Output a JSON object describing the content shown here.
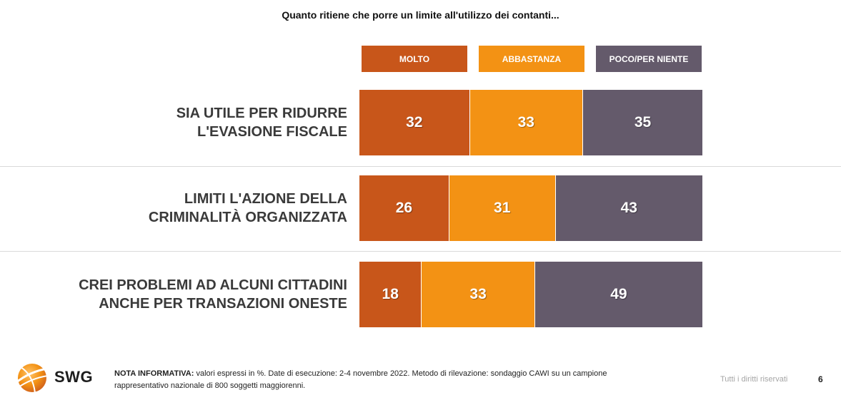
{
  "chart_data": {
    "type": "bar",
    "stacked": "100%",
    "orientation": "horizontal",
    "title": "Quanto ritiene che porre un limite all'utilizzo dei contanti...",
    "categories": [
      [
        "SIA UTILE PER RIDURRE",
        "L'EVASIONE FISCALE"
      ],
      [
        "LIMITI L'AZIONE DELLA",
        "CRIMINALITÀ ORGANIZZATA"
      ],
      [
        "CREI PROBLEMI AD ALCUNI CITTADINI",
        "ANCHE PER TRANSAZIONI ONESTE"
      ]
    ],
    "series": [
      {
        "name": "MOLTO",
        "color": "#c8561a",
        "values": [
          32,
          26,
          18
        ]
      },
      {
        "name": "ABBASTANZA",
        "color": "#f39214",
        "values": [
          33,
          31,
          33
        ]
      },
      {
        "name": "POCO/PER NIENTE",
        "color": "#645a6b",
        "values": [
          35,
          43,
          49
        ]
      }
    ],
    "xlim": [
      0,
      100
    ],
    "legend_position": "top",
    "grid": false
  },
  "footer": {
    "logo_text": "SWG",
    "note_label": "NOTA INFORMATIVA:",
    "note_line1": " valori espressi in %. Date di esecuzione: 2-4 novembre 2022. Metodo di rilevazione: sondaggio CAWI su un campione",
    "note_line2": "rappresentativo nazionale di 800 soggetti maggiorenni.",
    "rights": "Tutti i diritti riservati",
    "page_number": "6"
  }
}
